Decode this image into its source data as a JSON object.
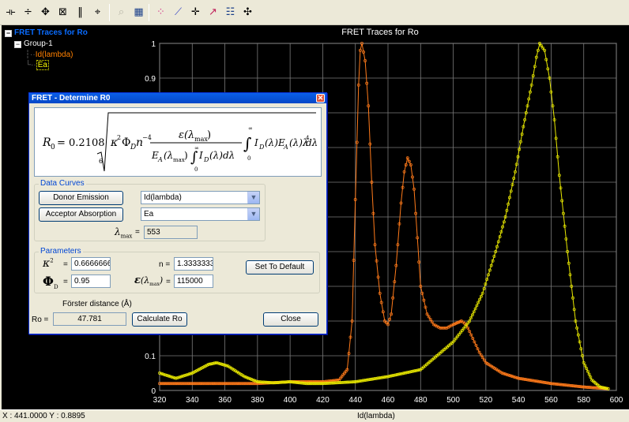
{
  "toolbar": {
    "icons": [
      "split-horizontal-icon",
      "split-vertical-icon",
      "move-cursor-icon",
      "zoom-fit-icon",
      "pause-icon",
      "crosshair-icon",
      "annotate-icon",
      "grid-icon",
      "scatter-icon",
      "line-fit-icon",
      "plus-icon",
      "line-arrow-icon",
      "list-icon",
      "pan-icon"
    ]
  },
  "tree": {
    "root_label": "FRET Traces for Ro",
    "group_label": "Group-1",
    "items": [
      {
        "label": "Id(lambda)",
        "color": "#ff8000"
      },
      {
        "label": "Ea",
        "color": "#ffff00"
      }
    ]
  },
  "chart_data": {
    "type": "line",
    "title": "FRET Traces for Ro",
    "xlabel": "Id(lambda)",
    "ylabel": "",
    "xlim": [
      320,
      600
    ],
    "ylim": [
      0,
      1
    ],
    "x_ticks": [
      320,
      340,
      360,
      380,
      400,
      420,
      440,
      460,
      480,
      500,
      520,
      540,
      560,
      580,
      600
    ],
    "y_ticks": [
      0,
      0.1,
      0.9,
      1
    ],
    "y_tick_labels": [
      "0",
      "0.1",
      "0.9",
      "1"
    ],
    "grid": true,
    "series": [
      {
        "name": "Id(lambda)",
        "color": "#ff7a1a",
        "points": [
          [
            320,
            0.02
          ],
          [
            340,
            0.02
          ],
          [
            360,
            0.02
          ],
          [
            380,
            0.02
          ],
          [
            400,
            0.025
          ],
          [
            410,
            0.025
          ],
          [
            420,
            0.025
          ],
          [
            430,
            0.03
          ],
          [
            435,
            0.06
          ],
          [
            438,
            0.2
          ],
          [
            440,
            0.55
          ],
          [
            442,
            0.88
          ],
          [
            443,
            0.98
          ],
          [
            444,
            1.0
          ],
          [
            446,
            0.95
          ],
          [
            448,
            0.82
          ],
          [
            450,
            0.6
          ],
          [
            452,
            0.42
          ],
          [
            455,
            0.28
          ],
          [
            458,
            0.2
          ],
          [
            460,
            0.19
          ],
          [
            462,
            0.22
          ],
          [
            465,
            0.36
          ],
          [
            468,
            0.54
          ],
          [
            470,
            0.63
          ],
          [
            472,
            0.67
          ],
          [
            474,
            0.65
          ],
          [
            476,
            0.58
          ],
          [
            478,
            0.44
          ],
          [
            480,
            0.3
          ],
          [
            484,
            0.22
          ],
          [
            488,
            0.19
          ],
          [
            492,
            0.18
          ],
          [
            496,
            0.18
          ],
          [
            500,
            0.19
          ],
          [
            505,
            0.2
          ],
          [
            508,
            0.19
          ],
          [
            512,
            0.15
          ],
          [
            516,
            0.11
          ],
          [
            520,
            0.08
          ],
          [
            530,
            0.05
          ],
          [
            540,
            0.035
          ],
          [
            560,
            0.02
          ],
          [
            580,
            0.01
          ],
          [
            595,
            0.005
          ]
        ]
      },
      {
        "name": "Ea",
        "color": "#e8e800",
        "points": [
          [
            320,
            0.05
          ],
          [
            330,
            0.035
          ],
          [
            340,
            0.05
          ],
          [
            350,
            0.075
          ],
          [
            355,
            0.08
          ],
          [
            362,
            0.07
          ],
          [
            372,
            0.04
          ],
          [
            380,
            0.025
          ],
          [
            390,
            0.022
          ],
          [
            400,
            0.025
          ],
          [
            410,
            0.02
          ],
          [
            420,
            0.02
          ],
          [
            440,
            0.025
          ],
          [
            460,
            0.04
          ],
          [
            480,
            0.06
          ],
          [
            490,
            0.1
          ],
          [
            500,
            0.14
          ],
          [
            510,
            0.2
          ],
          [
            518,
            0.28
          ],
          [
            526,
            0.4
          ],
          [
            532,
            0.5
          ],
          [
            538,
            0.63
          ],
          [
            543,
            0.76
          ],
          [
            548,
            0.88
          ],
          [
            551,
            0.96
          ],
          [
            553,
            1.0
          ],
          [
            556,
            0.98
          ],
          [
            559,
            0.9
          ],
          [
            562,
            0.78
          ],
          [
            565,
            0.62
          ],
          [
            570,
            0.4
          ],
          [
            575,
            0.2
          ],
          [
            580,
            0.08
          ],
          [
            585,
            0.03
          ],
          [
            590,
            0.01
          ],
          [
            595,
            0.005
          ]
        ]
      }
    ]
  },
  "status": {
    "coords": "X : 441.0000 Y : 0.8895",
    "xlabel": "Id(lambda)"
  },
  "dialog": {
    "title": "FRET - Determine R0",
    "data_curves_label": "Data Curves",
    "donor_button": "Donor Emission",
    "donor_value": "Id(lambda)",
    "acceptor_button": "Acceptor Absorption",
    "acceptor_value": "Ea",
    "lambda_max_value": "553",
    "parameters_label": "Parameters",
    "kappa_value": "0.6666666",
    "n_label": "n =",
    "n_value": "1.3333333",
    "phi_value": "0.95",
    "eps_value": "115000",
    "set_default_button": "Set To Default",
    "forster_label": "Förster distance (Å)",
    "ro_label": "Ro =",
    "ro_value": "47.781",
    "calculate_button": "Calculate Ro",
    "close_button": "Close",
    "equals": "="
  }
}
